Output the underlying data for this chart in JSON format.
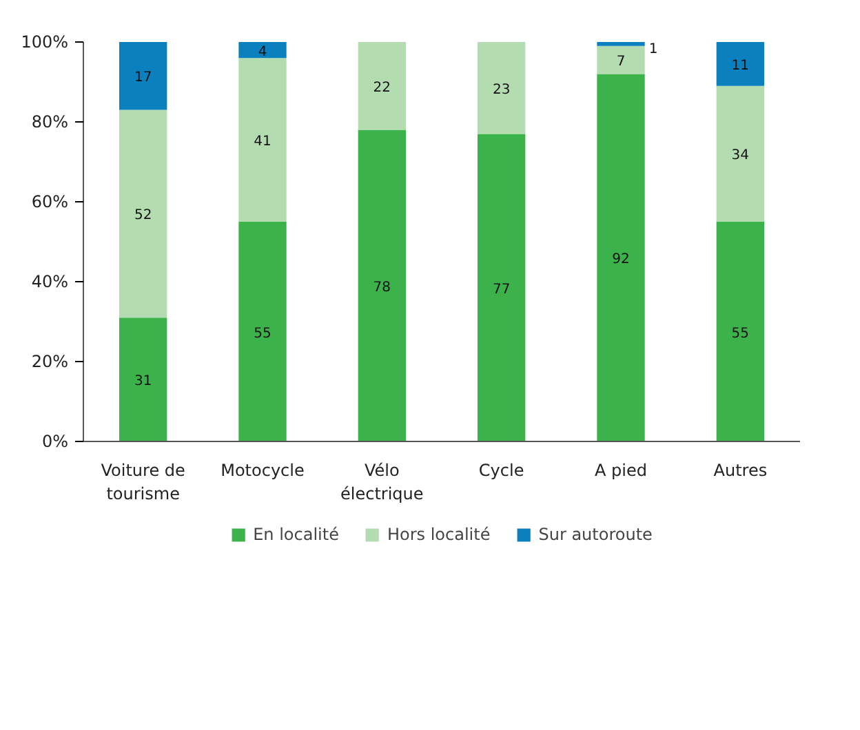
{
  "chart_data": {
    "type": "bar",
    "stacked": true,
    "categories": [
      "Voiture de\ntourisme",
      "Motocycle",
      "Vélo\nélectrique",
      "Cycle",
      "A pied",
      "Autres"
    ],
    "series": [
      {
        "name": "En localité",
        "color": "#3cb34a",
        "values": [
          31,
          55,
          78,
          77,
          92,
          55
        ]
      },
      {
        "name": "Hors localité",
        "color": "#b3dcb0",
        "values": [
          52,
          41,
          22,
          23,
          7,
          34
        ]
      },
      {
        "name": "Sur autoroute",
        "color": "#0a80bf",
        "values": [
          17,
          4,
          null,
          null,
          1,
          11
        ]
      }
    ],
    "ylim": [
      0,
      100
    ],
    "yticks": [
      {
        "value": 0,
        "label": "0%"
      },
      {
        "value": 20,
        "label": "20%"
      },
      {
        "value": 40,
        "label": "40%"
      },
      {
        "value": 60,
        "label": "60%"
      },
      {
        "value": 80,
        "label": "80%"
      },
      {
        "value": 100,
        "label": "100%"
      }
    ],
    "data_labels": true,
    "grid": false,
    "legend": "bottom"
  }
}
